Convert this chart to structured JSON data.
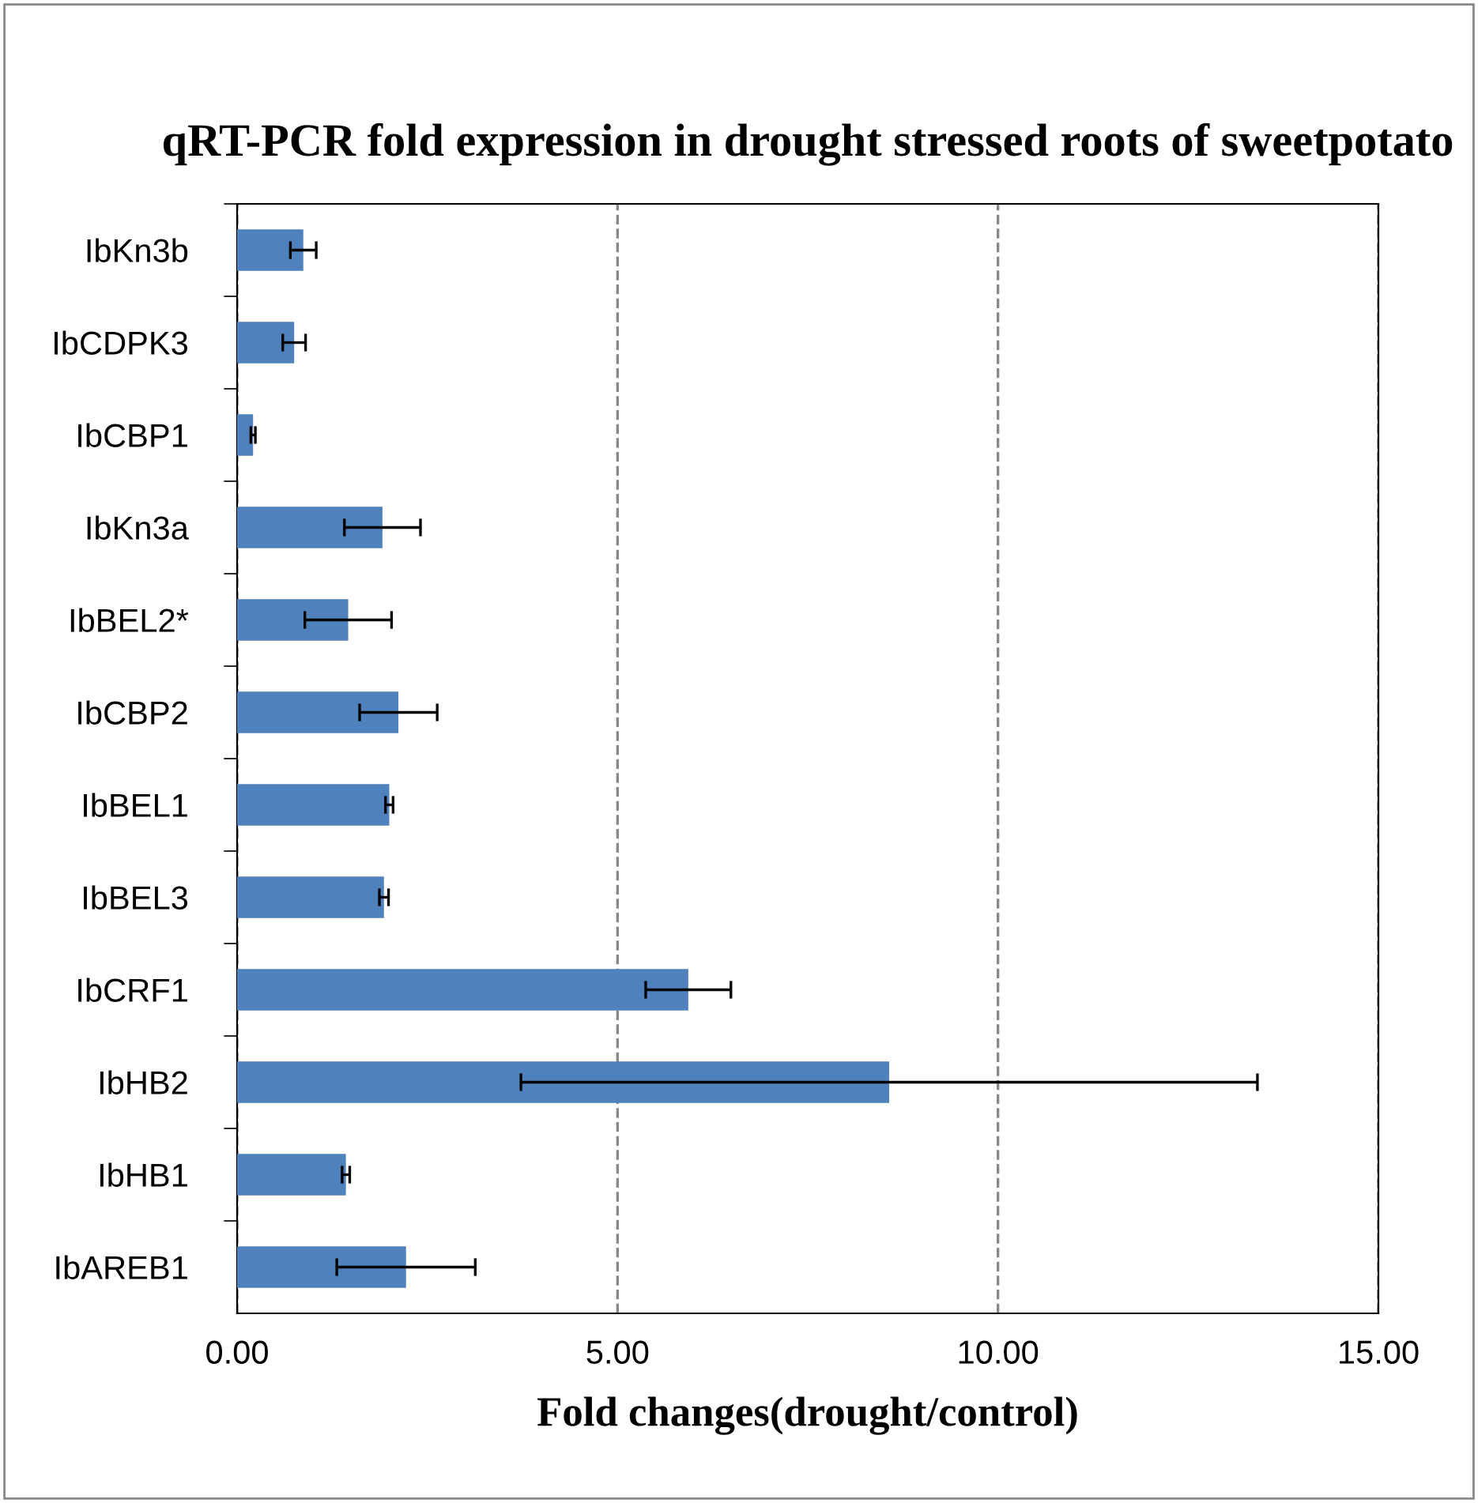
{
  "chart_data": {
    "type": "bar",
    "orientation": "horizontal",
    "title": "qRT-PCR fold expression in drought stressed roots of sweetpotato",
    "xlabel": "Fold changes(drought/control)",
    "categories": [
      "IbKn3b",
      "IbCDPK3",
      "IbCBP1",
      "IbKn3a",
      "IbBEL2*",
      "IbCBP2",
      "IbBEL1",
      "IbBEL3",
      "IbCRF1",
      "IbHB2",
      "IbHB1",
      "IbAREB1"
    ],
    "values": [
      0.87,
      0.75,
      0.21,
      1.91,
      1.46,
      2.12,
      2.0,
      1.93,
      5.93,
      8.57,
      1.43,
      2.22
    ],
    "errors": [
      0.17,
      0.15,
      0.03,
      0.5,
      0.57,
      0.51,
      0.05,
      0.06,
      0.56,
      4.84,
      0.05,
      0.91
    ],
    "color": "#4f81bd",
    "xlim": [
      0,
      15
    ],
    "xticks": [
      {
        "value": 0,
        "label": "0.00"
      },
      {
        "value": 5,
        "label": "5.00"
      },
      {
        "value": 10,
        "label": "10.00"
      },
      {
        "value": 15,
        "label": "15.00"
      }
    ],
    "grid": "x"
  }
}
